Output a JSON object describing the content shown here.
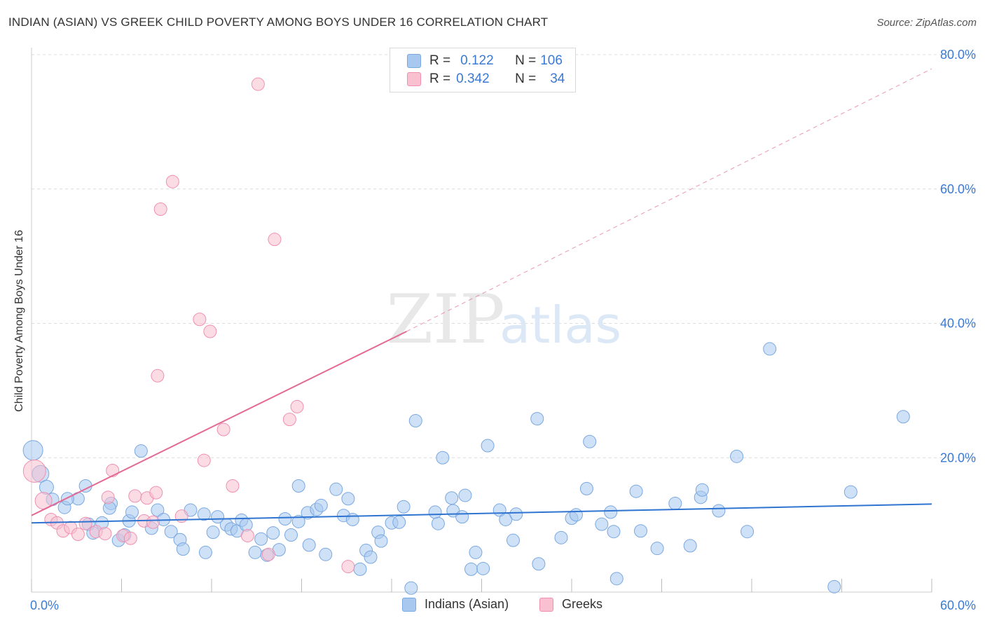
{
  "header": {
    "title": "INDIAN (ASIAN) VS GREEK CHILD POVERTY AMONG BOYS UNDER 16 CORRELATION CHART",
    "source": "Source: ZipAtlas.com"
  },
  "watermark": {
    "zip": "ZIP",
    "atlas": "atlas"
  },
  "legend": {
    "rows": [
      {
        "r_label": "R =",
        "r_value": "0.122",
        "n_label": "N =",
        "n_value": "106",
        "color": "#a8c8f0",
        "border": "#7aa8e0"
      },
      {
        "r_label": "R =",
        "r_value": "0.342",
        "n_label": "N =",
        "n_value": "34",
        "color": "#f8c0d0",
        "border": "#f090b0"
      }
    ]
  },
  "bottom_legend": [
    {
      "label": "Indians (Asian)",
      "color": "#a8c8f0",
      "border": "#7aa8e0"
    },
    {
      "label": "Greeks",
      "color": "#f8c0d0",
      "border": "#f090b0"
    }
  ],
  "chart_data": {
    "type": "scatter",
    "title": "INDIAN (ASIAN) VS GREEK CHILD POVERTY AMONG BOYS UNDER 16 CORRELATION CHART",
    "xlabel": "",
    "ylabel": "Child Poverty Among Boys Under 16",
    "xlim": [
      0,
      60
    ],
    "ylim": [
      0,
      80
    ],
    "x_tick_labels": {
      "min": "0.0%",
      "max": "60.0%"
    },
    "y_ticks": [
      {
        "value": 20,
        "label": "20.0%"
      },
      {
        "value": 40,
        "label": "40.0%"
      },
      {
        "value": 60,
        "label": "60.0%"
      },
      {
        "value": 80,
        "label": "80.0%"
      }
    ],
    "grid": true,
    "series": [
      {
        "name": "Indians (Asian)",
        "color": "#a8c8f0",
        "stroke": "#7aa8e0",
        "trend": {
          "x": [
            0,
            60
          ],
          "y": [
            10.3,
            13.1
          ],
          "color": "#2f74d0"
        },
        "points": [
          [
            0.1,
            21.1,
            14
          ],
          [
            0.6,
            17.6,
            12
          ],
          [
            1.0,
            15.6,
            10
          ],
          [
            1.4,
            13.8,
            9
          ],
          [
            2.2,
            12.6,
            9
          ],
          [
            3.1,
            13.9,
            9
          ],
          [
            3.6,
            15.8,
            9
          ],
          [
            2.4,
            13.9,
            9
          ],
          [
            3.8,
            10.1,
            9
          ],
          [
            4.1,
            8.8,
            9
          ],
          [
            4.7,
            10.3,
            9
          ],
          [
            5.3,
            13.2,
            9
          ],
          [
            5.2,
            12.5,
            9
          ],
          [
            5.8,
            7.7,
            9
          ],
          [
            6.2,
            8.5,
            9
          ],
          [
            6.5,
            10.6,
            9
          ],
          [
            6.7,
            11.9,
            9
          ],
          [
            7.3,
            21.0,
            9
          ],
          [
            8.0,
            9.5,
            9
          ],
          [
            8.4,
            12.2,
            9
          ],
          [
            8.8,
            10.8,
            9
          ],
          [
            9.3,
            9.0,
            9
          ],
          [
            9.9,
            7.8,
            9
          ],
          [
            10.1,
            6.4,
            9
          ],
          [
            10.6,
            12.2,
            9
          ],
          [
            11.5,
            11.6,
            9
          ],
          [
            11.6,
            5.9,
            9
          ],
          [
            12.1,
            8.9,
            9
          ],
          [
            12.4,
            11.2,
            9
          ],
          [
            13.0,
            10.0,
            9
          ],
          [
            13.3,
            9.4,
            9
          ],
          [
            13.7,
            9.1,
            9
          ],
          [
            14.0,
            10.7,
            9
          ],
          [
            14.3,
            10.0,
            9
          ],
          [
            14.9,
            5.9,
            9
          ],
          [
            15.3,
            7.9,
            9
          ],
          [
            15.7,
            5.5,
            9
          ],
          [
            16.1,
            8.8,
            9
          ],
          [
            16.5,
            6.3,
            9
          ],
          [
            16.9,
            10.9,
            9
          ],
          [
            17.3,
            8.5,
            9
          ],
          [
            17.8,
            10.5,
            9
          ],
          [
            17.8,
            15.8,
            9
          ],
          [
            18.4,
            11.8,
            9
          ],
          [
            18.5,
            7.0,
            9
          ],
          [
            19.0,
            12.3,
            9
          ],
          [
            19.3,
            12.9,
            9
          ],
          [
            19.6,
            5.6,
            9
          ],
          [
            20.3,
            15.3,
            9
          ],
          [
            20.8,
            11.4,
            9
          ],
          [
            21.1,
            13.9,
            9
          ],
          [
            21.4,
            10.8,
            9
          ],
          [
            21.9,
            3.4,
            9
          ],
          [
            22.3,
            6.2,
            9
          ],
          [
            22.6,
            5.2,
            9
          ],
          [
            23.1,
            8.9,
            9
          ],
          [
            23.3,
            7.6,
            9
          ],
          [
            24.0,
            10.3,
            9
          ],
          [
            24.5,
            10.4,
            9
          ],
          [
            24.8,
            12.7,
            9
          ],
          [
            25.3,
            0.6,
            9
          ],
          [
            25.6,
            25.5,
            9
          ],
          [
            26.9,
            11.9,
            9
          ],
          [
            27.1,
            10.2,
            9
          ],
          [
            27.4,
            20.0,
            9
          ],
          [
            28.0,
            14.0,
            9
          ],
          [
            28.1,
            12.1,
            9
          ],
          [
            28.7,
            11.2,
            9
          ],
          [
            28.9,
            14.4,
            9
          ],
          [
            29.3,
            3.4,
            9
          ],
          [
            29.6,
            5.9,
            9
          ],
          [
            30.1,
            3.5,
            9
          ],
          [
            30.4,
            21.8,
            9
          ],
          [
            31.2,
            12.2,
            9
          ],
          [
            31.6,
            10.8,
            9
          ],
          [
            32.1,
            7.7,
            9
          ],
          [
            32.3,
            11.6,
            9
          ],
          [
            33.7,
            25.8,
            9
          ],
          [
            33.8,
            4.2,
            9
          ],
          [
            35.3,
            8.1,
            9
          ],
          [
            36.0,
            11.0,
            9
          ],
          [
            36.3,
            11.5,
            9
          ],
          [
            37.2,
            22.4,
            9
          ],
          [
            37.0,
            15.4,
            9
          ],
          [
            38.0,
            10.1,
            9
          ],
          [
            38.6,
            11.9,
            9
          ],
          [
            38.8,
            9.0,
            9
          ],
          [
            39.0,
            2.0,
            9
          ],
          [
            40.3,
            15.0,
            9
          ],
          [
            40.6,
            9.1,
            9
          ],
          [
            41.7,
            6.5,
            9
          ],
          [
            42.9,
            13.2,
            9
          ],
          [
            43.9,
            6.9,
            9
          ],
          [
            44.6,
            14.1,
            9
          ],
          [
            44.7,
            15.2,
            9
          ],
          [
            45.8,
            12.1,
            9
          ],
          [
            47.0,
            20.2,
            9
          ],
          [
            47.7,
            9.0,
            9
          ],
          [
            49.2,
            36.2,
            9
          ],
          [
            53.5,
            0.8,
            9
          ],
          [
            54.6,
            14.9,
            9
          ],
          [
            58.1,
            26.1,
            9
          ]
        ]
      },
      {
        "name": "Greeks",
        "color": "#f8c0d0",
        "stroke": "#f090b0",
        "trend": {
          "x": [
            0,
            25.0
          ],
          "y": [
            11.4,
            38.8
          ],
          "color": "#e46a96",
          "extended": {
            "x": [
              25.0,
              60
            ],
            "y": [
              38.8,
              77.9
            ]
          }
        },
        "points": [
          [
            0.2,
            18.0,
            16
          ],
          [
            0.8,
            13.6,
            12
          ],
          [
            1.3,
            10.8,
            9
          ],
          [
            1.7,
            10.3,
            9
          ],
          [
            2.1,
            9.1,
            9
          ],
          [
            2.6,
            9.6,
            9
          ],
          [
            3.1,
            8.6,
            9
          ],
          [
            3.6,
            10.2,
            9
          ],
          [
            4.3,
            9.0,
            9
          ],
          [
            4.9,
            8.7,
            9
          ],
          [
            5.1,
            14.1,
            9
          ],
          [
            5.4,
            18.1,
            9
          ],
          [
            6.1,
            8.4,
            9
          ],
          [
            6.6,
            8.0,
            9
          ],
          [
            6.9,
            14.3,
            9
          ],
          [
            7.5,
            10.6,
            9
          ],
          [
            7.7,
            14.0,
            9
          ],
          [
            8.1,
            10.4,
            9
          ],
          [
            8.3,
            14.8,
            9
          ],
          [
            8.4,
            32.2,
            9
          ],
          [
            8.6,
            57.0,
            9
          ],
          [
            9.4,
            61.1,
            9
          ],
          [
            10.0,
            11.3,
            9
          ],
          [
            11.2,
            40.6,
            9
          ],
          [
            11.5,
            19.6,
            9
          ],
          [
            11.9,
            38.8,
            9
          ],
          [
            12.8,
            24.2,
            9
          ],
          [
            13.4,
            15.8,
            9
          ],
          [
            14.4,
            8.4,
            9
          ],
          [
            15.1,
            75.6,
            9
          ],
          [
            15.8,
            5.6,
            9
          ],
          [
            16.2,
            52.5,
            9
          ],
          [
            17.2,
            25.7,
            9
          ],
          [
            17.7,
            27.6,
            9
          ],
          [
            21.1,
            3.8,
            9
          ]
        ]
      }
    ]
  }
}
